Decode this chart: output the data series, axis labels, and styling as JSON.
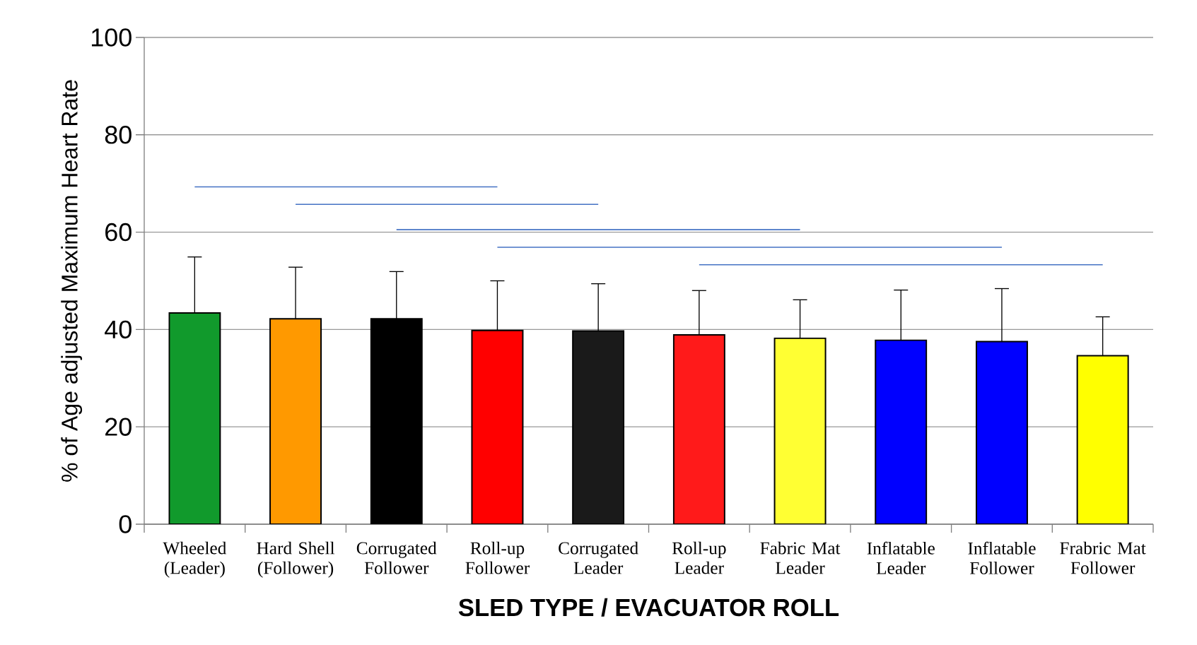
{
  "chart_data": {
    "type": "bar",
    "xlabel": "SLED  TYPE / EVACUATOR ROLL",
    "ylabel": "% of Age adjusted Maximum Heart Rate",
    "categories": [
      "Wheeled (Leader)",
      "Hard Shell (Follower)",
      "Corrugated Follower",
      "Roll-up Follower",
      "Corrugated Leader",
      "Roll-up Leader",
      "Fabric Mat Leader",
      "Inflatable Leader",
      "Inflatable Follower",
      "Frabric Mat Follower"
    ],
    "values": [
      43.4,
      42.2,
      42.2,
      39.8,
      39.7,
      38.9,
      38.2,
      37.8,
      37.5,
      34.6
    ],
    "errors": [
      11.5,
      10.6,
      9.7,
      10.2,
      9.7,
      9.1,
      7.9,
      10.3,
      10.9,
      8.0
    ],
    "colors": [
      "#119a2c",
      "#ff9900",
      "#000000",
      "#ff0000",
      "#1a1a1a",
      "#ff1a1a",
      "#ffff33",
      "#0000ff",
      "#0000ff",
      "#ffff00"
    ],
    "series": [
      {
        "type": "line",
        "color": "#4472c4",
        "x": [
          "Wheeled (Leader)",
          "Roll-up Follower"
        ],
        "values": [
          69.3,
          69.3
        ]
      },
      {
        "type": "line",
        "color": "#4472c4",
        "x": [
          "Hard Shell (Follower)",
          "Corrugated Leader"
        ],
        "values": [
          65.7,
          65.7
        ]
      },
      {
        "type": "line",
        "color": "#4472c4",
        "x": [
          "Corrugated Follower",
          "Fabric Mat Leader"
        ],
        "values": [
          60.5,
          60.5
        ]
      },
      {
        "type": "line",
        "color": "#4472c4",
        "x": [
          "Roll-up Follower",
          "Inflatable Follower"
        ],
        "values": [
          56.9,
          56.9
        ]
      },
      {
        "type": "line",
        "color": "#4472c4",
        "x": [
          "Roll-up Leader",
          "Frabric Mat Follower"
        ],
        "values": [
          53.3,
          53.3
        ]
      }
    ],
    "ylim": [
      0,
      100
    ],
    "yticks": [
      0,
      20,
      40,
      60,
      80,
      100
    ],
    "grid": "y"
  }
}
